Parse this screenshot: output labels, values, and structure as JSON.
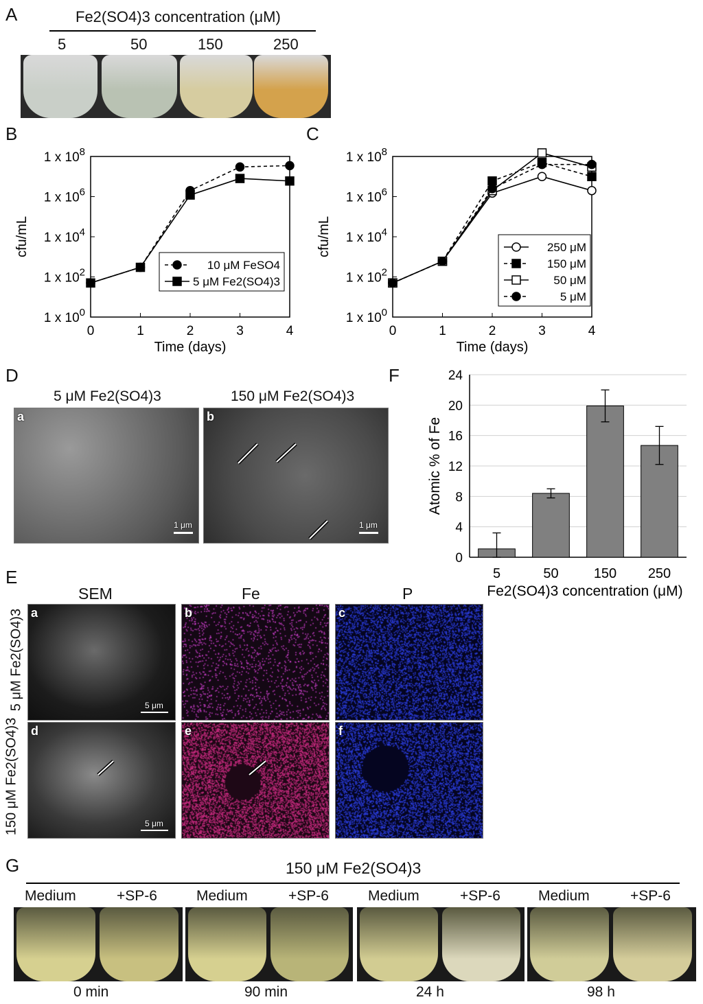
{
  "panel_a": {
    "label": "A",
    "header": "Fe2(SO4)3 concentration (μM)",
    "concentrations": [
      "5",
      "50",
      "150",
      "250"
    ],
    "flask_colors": [
      "#c9cfc8",
      "#b9c2b3",
      "#d6cca0",
      "#d4a24c"
    ]
  },
  "panel_b": {
    "label": "B",
    "ylabel": "cfu/mL",
    "xlabel": "Time (days)",
    "yticks": [
      "1 x 10^0",
      "1 x 10^2",
      "1 x 10^4",
      "1 x 10^6",
      "1 x 10^8"
    ],
    "xticks": [
      "0",
      "1",
      "2",
      "3",
      "4"
    ],
    "legend": [
      "10 μM FeSO4",
      "5 μM Fe2(SO4)3"
    ]
  },
  "panel_c": {
    "label": "C",
    "ylabel": "cfu/mL",
    "xlabel": "Time (days)",
    "yticks": [
      "1 x 10^0",
      "1 x 10^2",
      "1 x 10^4",
      "1 x 10^6",
      "1 x 10^8"
    ],
    "xticks": [
      "0",
      "1",
      "2",
      "3",
      "4"
    ],
    "legend": [
      "250 μM",
      "150 μM",
      "50 μM",
      "5 μM"
    ]
  },
  "panel_d": {
    "label": "D",
    "title_a": "5 μM Fe2(SO4)3",
    "title_b": "150 μM Fe2(SO4)3",
    "sub_a": "a",
    "sub_b": "b",
    "scale": "1 μm"
  },
  "panel_e": {
    "label": "E",
    "col_sem": "SEM",
    "col_fe": "Fe",
    "col_p": "P",
    "row1": "5 μM Fe2(SO4)3",
    "row2": "150 μM Fe2(SO4)3",
    "subs": [
      "a",
      "b",
      "c",
      "d",
      "e",
      "f"
    ],
    "scale": "5 μm"
  },
  "panel_f": {
    "label": "F",
    "ylabel": "Atomic % of Fe",
    "xlabel": "Fe2(SO4)3 concentration (μM)",
    "yticks": [
      "0",
      "4",
      "8",
      "12",
      "16",
      "20",
      "24"
    ]
  },
  "panel_g": {
    "label": "G",
    "title": "150 μM Fe2(SO4)3",
    "medium": "Medium",
    "sp6": "+SP-6",
    "times": [
      "0 min",
      "90 min",
      "24 h",
      "98 h"
    ]
  },
  "chart_data": [
    {
      "type": "line",
      "panel": "B",
      "x": [
        0,
        1,
        2,
        3,
        4
      ],
      "ylabel": "cfu/mL",
      "xlabel": "Time (days)",
      "yscale": "log",
      "ylim": [
        1,
        100000000
      ],
      "series": [
        {
          "name": "10 μM FeSO4",
          "values": [
            50,
            300,
            2000000,
            30000000,
            35000000
          ],
          "marker": "filled-circle",
          "line": "dashed"
        },
        {
          "name": "5 μM Fe2(SO4)3",
          "values": [
            50,
            300,
            1200000,
            8000000,
            6000000
          ],
          "marker": "filled-square",
          "line": "solid"
        }
      ],
      "legend_position": "bottom-right"
    },
    {
      "type": "line",
      "panel": "C",
      "x": [
        0,
        1,
        2,
        3,
        4
      ],
      "ylabel": "cfu/mL",
      "xlabel": "Time (days)",
      "yscale": "log",
      "ylim": [
        1,
        100000000
      ],
      "series": [
        {
          "name": "250 μM",
          "values": [
            50,
            600,
            1500000,
            10000000,
            2000000
          ],
          "marker": "open-circle",
          "line": "solid"
        },
        {
          "name": "150 μM",
          "values": [
            50,
            600,
            6000000,
            50000000,
            10000000
          ],
          "marker": "filled-square",
          "line": "dashed"
        },
        {
          "name": "50 μM",
          "values": [
            50,
            600,
            2000000,
            150000000,
            30000000
          ],
          "marker": "open-square",
          "line": "solid"
        },
        {
          "name": "5 μM",
          "values": [
            50,
            600,
            2500000,
            40000000,
            40000000
          ],
          "marker": "filled-circle",
          "line": "dashed"
        }
      ],
      "legend_position": "bottom-right"
    },
    {
      "type": "bar",
      "panel": "F",
      "categories": [
        "5",
        "50",
        "150",
        "250"
      ],
      "values": [
        1.1,
        8.4,
        19.9,
        14.7
      ],
      "errors": [
        2.1,
        0.6,
        2.1,
        2.5
      ],
      "ylabel": "Atomic % of Fe",
      "xlabel": "Fe2(SO4)3 concentration (μM)",
      "ylim": [
        0,
        24
      ],
      "bar_color": "#808080"
    }
  ]
}
